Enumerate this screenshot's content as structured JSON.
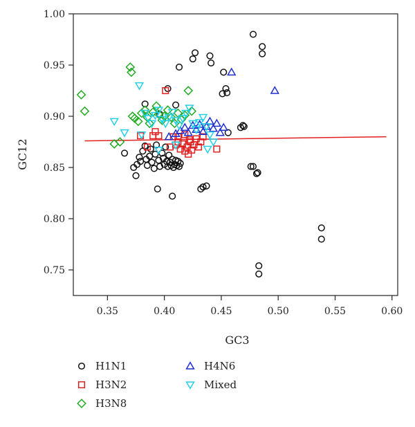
{
  "chart_data": {
    "type": "scatter",
    "xlabel": "GC3",
    "ylabel": "GC12",
    "xlim": [
      0.32,
      0.605
    ],
    "ylim": [
      0.725,
      1.0
    ],
    "x_ticks": [
      "0.35",
      "0.40",
      "0.45",
      "0.50",
      "0.55",
      "0.60"
    ],
    "y_ticks": [
      "0.75",
      "0.80",
      "0.85",
      "0.90",
      "0.95",
      "1.00"
    ],
    "grid": false,
    "legend_position": "bottom-left",
    "regression_line": {
      "color": "#e02020",
      "x": [
        0.33,
        0.595
      ],
      "y": [
        0.876,
        0.88
      ]
    },
    "series": [
      {
        "name": "H1N1",
        "marker": "circle",
        "color": "#111111",
        "points": [
          [
            0.365,
            0.864
          ],
          [
            0.373,
            0.85
          ],
          [
            0.375,
            0.842
          ],
          [
            0.376,
            0.853
          ],
          [
            0.378,
            0.86
          ],
          [
            0.379,
            0.856
          ],
          [
            0.381,
            0.866
          ],
          [
            0.383,
            0.871
          ],
          [
            0.384,
            0.858
          ],
          [
            0.385,
            0.852
          ],
          [
            0.387,
            0.861
          ],
          [
            0.388,
            0.868
          ],
          [
            0.389,
            0.855
          ],
          [
            0.391,
            0.849
          ],
          [
            0.392,
            0.863
          ],
          [
            0.393,
            0.872
          ],
          [
            0.394,
            0.829
          ],
          [
            0.395,
            0.857
          ],
          [
            0.396,
            0.851
          ],
          [
            0.398,
            0.864
          ],
          [
            0.399,
            0.859
          ],
          [
            0.4,
            0.853
          ],
          [
            0.401,
            0.87
          ],
          [
            0.402,
            0.856
          ],
          [
            0.403,
            0.851
          ],
          [
            0.404,
            0.862
          ],
          [
            0.405,
            0.855
          ],
          [
            0.406,
            0.852
          ],
          [
            0.407,
            0.858
          ],
          [
            0.408,
            0.85
          ],
          [
            0.409,
            0.853
          ],
          [
            0.41,
            0.857
          ],
          [
            0.411,
            0.852
          ],
          [
            0.412,
            0.856
          ],
          [
            0.413,
            0.851
          ],
          [
            0.414,
            0.854
          ],
          [
            0.383,
            0.912
          ],
          [
            0.396,
            0.902
          ],
          [
            0.403,
            0.927
          ],
          [
            0.41,
            0.911
          ],
          [
            0.413,
            0.948
          ],
          [
            0.425,
            0.956
          ],
          [
            0.427,
            0.962
          ],
          [
            0.44,
            0.959
          ],
          [
            0.441,
            0.952
          ],
          [
            0.451,
            0.922
          ],
          [
            0.452,
            0.943
          ],
          [
            0.454,
            0.927
          ],
          [
            0.455,
            0.923
          ],
          [
            0.432,
            0.829
          ],
          [
            0.434,
            0.831
          ],
          [
            0.437,
            0.832
          ],
          [
            0.407,
            0.822
          ],
          [
            0.456,
            0.884
          ],
          [
            0.467,
            0.889
          ],
          [
            0.469,
            0.891
          ],
          [
            0.47,
            0.89
          ],
          [
            0.476,
            0.851
          ],
          [
            0.478,
            0.851
          ],
          [
            0.481,
            0.844
          ],
          [
            0.482,
            0.845
          ],
          [
            0.478,
            0.98
          ],
          [
            0.486,
            0.968
          ],
          [
            0.486,
            0.961
          ],
          [
            0.483,
            0.754
          ],
          [
            0.483,
            0.746
          ],
          [
            0.538,
            0.791
          ],
          [
            0.538,
            0.78
          ]
        ]
      },
      {
        "name": "H3N2",
        "marker": "square",
        "color": "#e02020",
        "points": [
          [
            0.379,
            0.881
          ],
          [
            0.385,
            0.87
          ],
          [
            0.39,
            0.881
          ],
          [
            0.392,
            0.885
          ],
          [
            0.395,
            0.881
          ],
          [
            0.401,
            0.925
          ],
          [
            0.405,
            0.87
          ],
          [
            0.408,
            0.88
          ],
          [
            0.41,
            0.872
          ],
          [
            0.412,
            0.875
          ],
          [
            0.414,
            0.868
          ],
          [
            0.416,
            0.873
          ],
          [
            0.418,
            0.866
          ],
          [
            0.42,
            0.87
          ],
          [
            0.421,
            0.863
          ],
          [
            0.423,
            0.875
          ],
          [
            0.424,
            0.867
          ],
          [
            0.426,
            0.872
          ],
          [
            0.428,
            0.878
          ],
          [
            0.43,
            0.87
          ],
          [
            0.432,
            0.875
          ],
          [
            0.434,
            0.88
          ],
          [
            0.446,
            0.868
          ],
          [
            0.412,
            0.88
          ],
          [
            0.418,
            0.882
          ],
          [
            0.422,
            0.877
          ]
        ]
      },
      {
        "name": "H3N8",
        "marker": "diamond",
        "color": "#22aa22",
        "points": [
          [
            0.327,
            0.921
          ],
          [
            0.33,
            0.905
          ],
          [
            0.356,
            0.873
          ],
          [
            0.361,
            0.875
          ],
          [
            0.37,
            0.948
          ],
          [
            0.371,
            0.943
          ],
          [
            0.372,
            0.9
          ],
          [
            0.374,
            0.898
          ],
          [
            0.377,
            0.895
          ],
          [
            0.38,
            0.903
          ],
          [
            0.383,
            0.906
          ],
          [
            0.385,
            0.899
          ],
          [
            0.387,
            0.893
          ],
          [
            0.39,
            0.904
          ],
          [
            0.393,
            0.91
          ],
          [
            0.395,
            0.902
          ],
          [
            0.398,
            0.896
          ],
          [
            0.4,
            0.9
          ],
          [
            0.403,
            0.906
          ],
          [
            0.406,
            0.899
          ],
          [
            0.409,
            0.893
          ],
          [
            0.412,
            0.903
          ],
          [
            0.415,
            0.897
          ],
          [
            0.418,
            0.901
          ],
          [
            0.421,
            0.925
          ],
          [
            0.424,
            0.905
          ]
        ]
      },
      {
        "name": "H4N6",
        "marker": "triangle-up",
        "color": "#1f2fd0",
        "points": [
          [
            0.404,
            0.88
          ],
          [
            0.41,
            0.883
          ],
          [
            0.414,
            0.886
          ],
          [
            0.418,
            0.889
          ],
          [
            0.421,
            0.884
          ],
          [
            0.425,
            0.891
          ],
          [
            0.428,
            0.887
          ],
          [
            0.431,
            0.892
          ],
          [
            0.434,
            0.885
          ],
          [
            0.437,
            0.89
          ],
          [
            0.44,
            0.895
          ],
          [
            0.443,
            0.888
          ],
          [
            0.446,
            0.893
          ],
          [
            0.449,
            0.884
          ],
          [
            0.452,
            0.889
          ],
          [
            0.459,
            0.943
          ],
          [
            0.497,
            0.925
          ]
        ]
      },
      {
        "name": "Mixed",
        "marker": "triangle-down",
        "color": "#22d0e8",
        "points": [
          [
            0.356,
            0.895
          ],
          [
            0.365,
            0.884
          ],
          [
            0.378,
            0.93
          ],
          [
            0.38,
            0.882
          ],
          [
            0.383,
            0.903
          ],
          [
            0.386,
            0.898
          ],
          [
            0.389,
            0.893
          ],
          [
            0.392,
            0.901
          ],
          [
            0.395,
            0.906
          ],
          [
            0.398,
            0.897
          ],
          [
            0.401,
            0.893
          ],
          [
            0.404,
            0.899
          ],
          [
            0.407,
            0.904
          ],
          [
            0.41,
            0.896
          ],
          [
            0.413,
            0.891
          ],
          [
            0.416,
            0.898
          ],
          [
            0.419,
            0.903
          ],
          [
            0.422,
            0.908
          ],
          [
            0.425,
            0.893
          ],
          [
            0.428,
            0.887
          ],
          [
            0.431,
            0.894
          ],
          [
            0.434,
            0.899
          ],
          [
            0.437,
            0.89
          ],
          [
            0.44,
            0.882
          ],
          [
            0.443,
            0.875
          ],
          [
            0.41,
            0.872
          ],
          [
            0.395,
            0.867
          ],
          [
            0.438,
            0.868
          ]
        ]
      }
    ]
  }
}
